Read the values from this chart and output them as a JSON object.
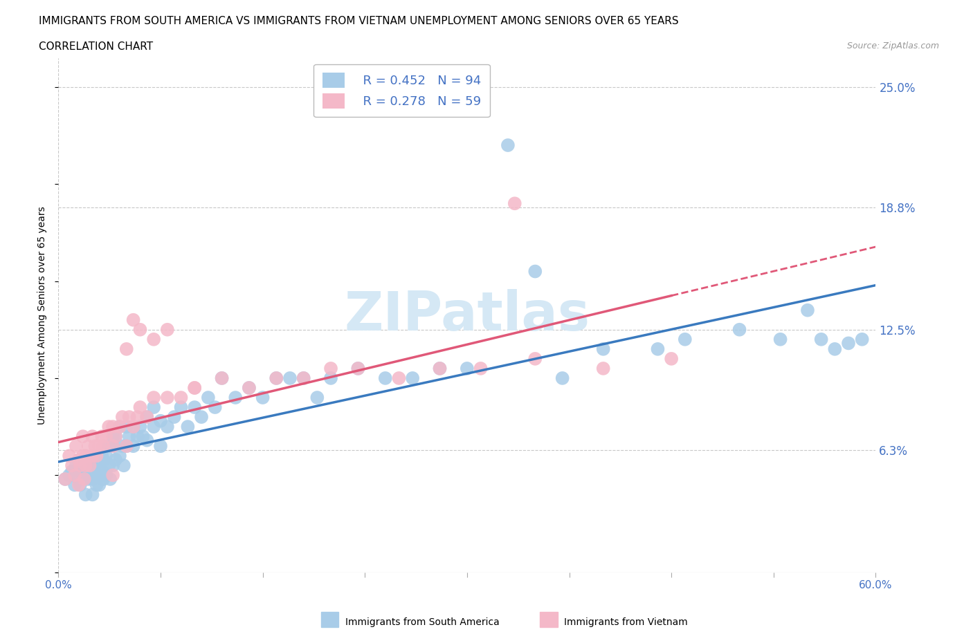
{
  "title_line1": "IMMIGRANTS FROM SOUTH AMERICA VS IMMIGRANTS FROM VIETNAM UNEMPLOYMENT AMONG SENIORS OVER 65 YEARS",
  "title_line2": "CORRELATION CHART",
  "source": "Source: ZipAtlas.com",
  "ylabel": "Unemployment Among Seniors over 65 years",
  "xmin": 0.0,
  "xmax": 0.6,
  "ymin": 0.0,
  "ymax": 0.265,
  "ytick_vals": [
    0.063,
    0.125,
    0.188,
    0.25
  ],
  "ytick_labels": [
    "6.3%",
    "12.5%",
    "18.8%",
    "25.0%"
  ],
  "xtick_vals": [
    0.0,
    0.075,
    0.15,
    0.225,
    0.3,
    0.375,
    0.45,
    0.525,
    0.6
  ],
  "xtick_labels": [
    "0.0%",
    "",
    "",
    "",
    "",
    "",
    "",
    "",
    "60.0%"
  ],
  "series1_label": "Immigrants from South America",
  "series2_label": "Immigrants from Vietnam",
  "series1_color": "#a8cce8",
  "series2_color": "#f4b8c8",
  "series1_R": 0.452,
  "series1_N": 94,
  "series2_R": 0.278,
  "series2_N": 59,
  "trend1_color": "#3a7abf",
  "trend2_color": "#e05878",
  "watermark_color": "#d5e8f5",
  "background_color": "#ffffff",
  "grid_color": "#c8c8c8",
  "axis_color": "#4472c4",
  "title_fontsize": 11,
  "legend_fontsize": 13,
  "series1_x": [
    0.005,
    0.008,
    0.01,
    0.012,
    0.013,
    0.015,
    0.015,
    0.016,
    0.018,
    0.018,
    0.019,
    0.02,
    0.02,
    0.02,
    0.022,
    0.022,
    0.023,
    0.025,
    0.025,
    0.025,
    0.027,
    0.027,
    0.028,
    0.028,
    0.03,
    0.03,
    0.03,
    0.032,
    0.032,
    0.033,
    0.033,
    0.035,
    0.035,
    0.037,
    0.037,
    0.038,
    0.04,
    0.04,
    0.04,
    0.042,
    0.042,
    0.045,
    0.045,
    0.047,
    0.048,
    0.05,
    0.05,
    0.052,
    0.055,
    0.055,
    0.058,
    0.06,
    0.062,
    0.065,
    0.065,
    0.07,
    0.07,
    0.075,
    0.075,
    0.08,
    0.085,
    0.09,
    0.095,
    0.1,
    0.105,
    0.11,
    0.115,
    0.12,
    0.13,
    0.14,
    0.15,
    0.16,
    0.17,
    0.18,
    0.19,
    0.2,
    0.22,
    0.24,
    0.26,
    0.28,
    0.3,
    0.33,
    0.35,
    0.37,
    0.4,
    0.44,
    0.46,
    0.5,
    0.53,
    0.55,
    0.56,
    0.57,
    0.58,
    0.59
  ],
  "series1_y": [
    0.048,
    0.05,
    0.052,
    0.045,
    0.055,
    0.048,
    0.052,
    0.045,
    0.05,
    0.055,
    0.048,
    0.05,
    0.055,
    0.04,
    0.048,
    0.055,
    0.05,
    0.048,
    0.055,
    0.04,
    0.05,
    0.055,
    0.045,
    0.058,
    0.05,
    0.055,
    0.045,
    0.052,
    0.06,
    0.048,
    0.058,
    0.05,
    0.06,
    0.055,
    0.065,
    0.048,
    0.055,
    0.065,
    0.07,
    0.058,
    0.07,
    0.06,
    0.075,
    0.065,
    0.055,
    0.065,
    0.075,
    0.07,
    0.065,
    0.075,
    0.07,
    0.075,
    0.07,
    0.08,
    0.068,
    0.075,
    0.085,
    0.078,
    0.065,
    0.075,
    0.08,
    0.085,
    0.075,
    0.085,
    0.08,
    0.09,
    0.085,
    0.1,
    0.09,
    0.095,
    0.09,
    0.1,
    0.1,
    0.1,
    0.09,
    0.1,
    0.105,
    0.1,
    0.1,
    0.105,
    0.105,
    0.22,
    0.155,
    0.1,
    0.115,
    0.115,
    0.12,
    0.125,
    0.12,
    0.135,
    0.12,
    0.115,
    0.118,
    0.12
  ],
  "series2_x": [
    0.005,
    0.008,
    0.01,
    0.012,
    0.013,
    0.015,
    0.015,
    0.016,
    0.018,
    0.018,
    0.019,
    0.02,
    0.02,
    0.022,
    0.023,
    0.025,
    0.025,
    0.027,
    0.028,
    0.03,
    0.032,
    0.033,
    0.035,
    0.037,
    0.04,
    0.04,
    0.042,
    0.045,
    0.047,
    0.05,
    0.052,
    0.055,
    0.058,
    0.06,
    0.065,
    0.07,
    0.08,
    0.09,
    0.1,
    0.12,
    0.14,
    0.16,
    0.18,
    0.2,
    0.22,
    0.25,
    0.28,
    0.31,
    0.35,
    0.4,
    0.45,
    0.05,
    0.055,
    0.06,
    0.07,
    0.08,
    0.1,
    0.335,
    0.04
  ],
  "series2_y": [
    0.048,
    0.06,
    0.055,
    0.05,
    0.065,
    0.058,
    0.045,
    0.055,
    0.06,
    0.07,
    0.048,
    0.055,
    0.06,
    0.065,
    0.055,
    0.06,
    0.07,
    0.065,
    0.06,
    0.065,
    0.07,
    0.065,
    0.07,
    0.075,
    0.065,
    0.075,
    0.07,
    0.075,
    0.08,
    0.065,
    0.08,
    0.075,
    0.08,
    0.085,
    0.08,
    0.09,
    0.09,
    0.09,
    0.095,
    0.1,
    0.095,
    0.1,
    0.1,
    0.105,
    0.105,
    0.1,
    0.105,
    0.105,
    0.11,
    0.105,
    0.11,
    0.115,
    0.13,
    0.125,
    0.12,
    0.125,
    0.095,
    0.19,
    0.05
  ],
  "trend2_dashed_start": 0.45
}
